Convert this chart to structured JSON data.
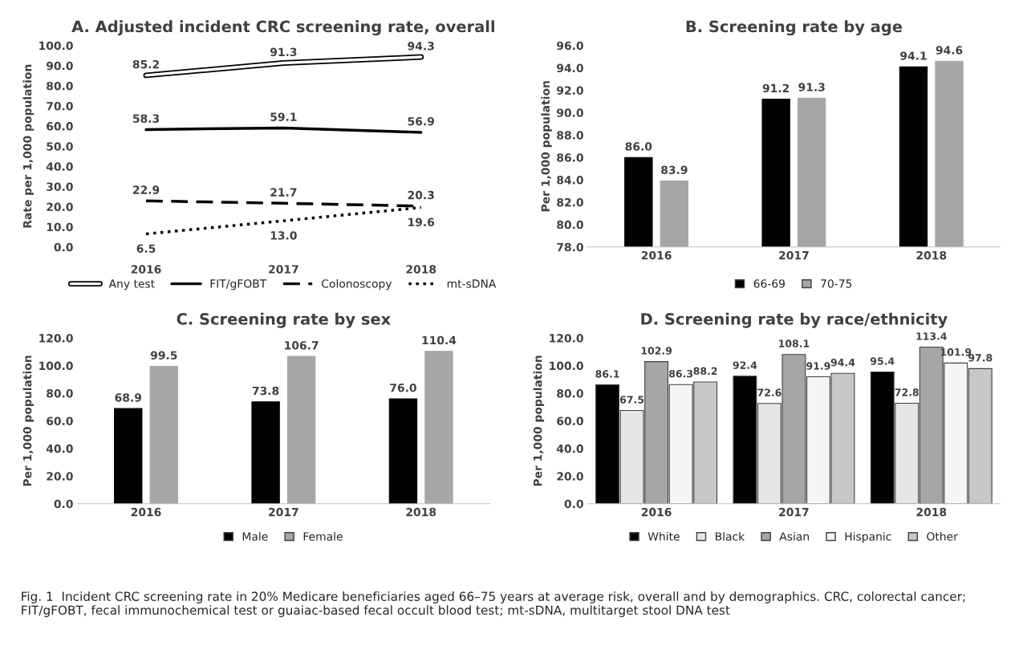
{
  "chart_data": [
    {
      "type": "line",
      "title": "A. Adjusted incident CRC screening rate, overall",
      "ylabel": "Rate per 1,000 population",
      "categories": [
        "2016",
        "2017",
        "2018"
      ],
      "series": [
        {
          "name": "Any test",
          "color": "#ffffff",
          "line_style": "solid",
          "values": [
            85.2,
            91.3,
            94.3
          ],
          "value_labels": [
            "85.2",
            "91.3",
            "94.3"
          ]
        },
        {
          "name": "FIT/gFOBT",
          "color": "#000000",
          "line_style": "solid",
          "values": [
            58.3,
            59.1,
            56.9
          ],
          "value_labels": [
            "58.3",
            "59.1",
            "56.9"
          ]
        },
        {
          "name": "Colonoscopy",
          "color": "#000000",
          "line_style": "dashed",
          "values": [
            22.9,
            21.7,
            20.3
          ],
          "value_labels": [
            "22.9",
            "21.7",
            "20.3"
          ]
        },
        {
          "name": "mt-sDNA",
          "color": "#000000",
          "line_style": "dotted",
          "values": [
            6.5,
            13.0,
            19.6
          ],
          "value_labels": [
            "6.5",
            "13.0",
            "19.6"
          ]
        }
      ],
      "ylim": [
        0,
        100
      ],
      "yticks": [
        {
          "value": 0,
          "label": "0.0"
        },
        {
          "value": 10,
          "label": "10.0"
        },
        {
          "value": 20,
          "label": "20.0"
        },
        {
          "value": 30,
          "label": "30.0"
        },
        {
          "value": 40,
          "label": "40.0"
        },
        {
          "value": 50,
          "label": "50.0"
        },
        {
          "value": 60,
          "label": "60.0"
        },
        {
          "value": 70,
          "label": "70.0"
        },
        {
          "value": 80,
          "label": "80.0"
        },
        {
          "value": 90,
          "label": "90.0"
        },
        {
          "value": 100,
          "label": "100.0"
        }
      ],
      "legend": "bottom",
      "grid": false
    },
    {
      "type": "bar",
      "title": "B. Screening rate by age",
      "ylabel": "Per 1,000 population",
      "categories": [
        "2016",
        "2017",
        "2018"
      ],
      "series": [
        {
          "name": "66-69",
          "color": "#000000",
          "values": [
            86.0,
            91.2,
            94.1
          ],
          "value_labels": [
            "86.0",
            "91.2",
            "94.1"
          ]
        },
        {
          "name": "70-75",
          "color": "#a6a6a6",
          "values": [
            83.9,
            91.3,
            94.6
          ],
          "value_labels": [
            "83.9",
            "91.3",
            "94.6"
          ]
        }
      ],
      "ylim": [
        78,
        96
      ],
      "yticks": [
        {
          "value": 78,
          "label": "78.0"
        },
        {
          "value": 80,
          "label": "80.0"
        },
        {
          "value": 82,
          "label": "82.0"
        },
        {
          "value": 84,
          "label": "84.0"
        },
        {
          "value": 86,
          "label": "86.0"
        },
        {
          "value": 88,
          "label": "88.0"
        },
        {
          "value": 90,
          "label": "90.0"
        },
        {
          "value": 92,
          "label": "92.0"
        },
        {
          "value": 94,
          "label": "94.0"
        },
        {
          "value": 96,
          "label": "96.0"
        }
      ],
      "legend": "bottom",
      "grid": false
    },
    {
      "type": "bar",
      "title": "C. Screening rate by sex",
      "ylabel": "Per 1,000 population",
      "categories": [
        "2016",
        "2017",
        "2018"
      ],
      "series": [
        {
          "name": "Male",
          "color": "#000000",
          "values": [
            68.9,
            73.8,
            76.0
          ],
          "value_labels": [
            "68.9",
            "73.8",
            "76.0"
          ]
        },
        {
          "name": "Female",
          "color": "#a6a6a6",
          "values": [
            99.5,
            106.7,
            110.4
          ],
          "value_labels": [
            "99.5",
            "106.7",
            "110.4"
          ]
        }
      ],
      "ylim": [
        0,
        120
      ],
      "yticks": [
        {
          "value": 0,
          "label": "0.0"
        },
        {
          "value": 20,
          "label": "20.0"
        },
        {
          "value": 40,
          "label": "40.0"
        },
        {
          "value": 60,
          "label": "60.0"
        },
        {
          "value": 80,
          "label": "80.0"
        },
        {
          "value": 100,
          "label": "100.0"
        },
        {
          "value": 120,
          "label": "120.0"
        }
      ],
      "legend": "bottom",
      "grid": false
    },
    {
      "type": "bar",
      "title": "D. Screening rate by race/ethnicity",
      "ylabel": "Per 1,000 population",
      "categories": [
        "2016",
        "2017",
        "2018"
      ],
      "series": [
        {
          "name": "White",
          "color": "#000000",
          "values": [
            86.1,
            92.4,
            95.4
          ],
          "value_labels": [
            "86.1",
            "92.4",
            "95.4"
          ]
        },
        {
          "name": "Black",
          "color": "#e6e6e6",
          "values": [
            67.5,
            72.6,
            72.8
          ],
          "value_labels": [
            "67.5",
            "72.6",
            "72.8"
          ]
        },
        {
          "name": "Asian",
          "color": "#a6a6a6",
          "values": [
            102.9,
            108.1,
            113.4
          ],
          "value_labels": [
            "102.9",
            "108.1",
            "113.4"
          ]
        },
        {
          "name": "Hispanic",
          "color": "#f5f5f5",
          "values": [
            86.3,
            91.9,
            101.9
          ],
          "value_labels": [
            "86.3",
            "91.9",
            "101.9"
          ]
        },
        {
          "name": "Other",
          "color": "#c8c8c8",
          "values": [
            88.2,
            94.4,
            97.8
          ],
          "value_labels": [
            "88.2",
            "94.4",
            "97.8"
          ]
        }
      ],
      "ylim": [
        0,
        120
      ],
      "yticks": [
        {
          "value": 0,
          "label": "0.0"
        },
        {
          "value": 20,
          "label": "20.0"
        },
        {
          "value": 40,
          "label": "40.0"
        },
        {
          "value": 60,
          "label": "60.0"
        },
        {
          "value": 80,
          "label": "80.0"
        },
        {
          "value": 100,
          "label": "100.0"
        },
        {
          "value": 120,
          "label": "120.0"
        }
      ],
      "legend": "bottom",
      "grid": false,
      "annotations": [
        "Fig. 1  Incident CRC screening rate in 20% Medicare beneficiaries aged 66–75 years at average risk, overall and by demographics. CRC, colorectal cancer; FIT/gFOBT, fecal immunochemical test or guaiac-based fecal occult blood test; mt-sDNA, multitarget stool DNA test"
      ]
    }
  ]
}
